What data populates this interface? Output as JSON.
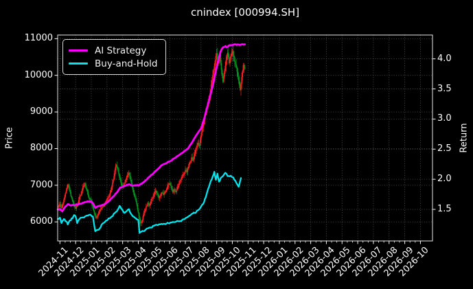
{
  "chart_data": {
    "type": "candlestick+line",
    "title": "cnindex [000994.SH]",
    "ylabel_left": "Price",
    "ylabel_right": "Return",
    "xlabel": "",
    "grid": true,
    "legend_position": "upper left",
    "background": "#000000",
    "text_color": "#ffffff",
    "grid_color": "#5a5a5a",
    "x_tick_labels": [
      "2024-11",
      "2024-12",
      "2025-01",
      "2025-02",
      "2025-03",
      "2025-04",
      "2025-05",
      "2025-06",
      "2025-07",
      "2025-08",
      "2025-09",
      "2025-10",
      "2025-11",
      "2025-12",
      "2026-01",
      "2026-02",
      "2026-03",
      "2026-04",
      "2026-05",
      "2026-06",
      "2026-07",
      "2026-08",
      "2026-09",
      "2026-10"
    ],
    "price_ticks": [
      6000,
      7000,
      8000,
      9000,
      10000,
      11000
    ],
    "return_ticks": [
      1.5,
      2.0,
      2.5,
      3.0,
      3.5,
      4.0
    ],
    "price_lim": [
      5480,
      11100
    ],
    "return_lim": [
      0.9755,
      4.3955
    ],
    "x_lim_months": [
      -0.145,
      23.77
    ],
    "candles": {
      "axis": "left",
      "x0": -0.1,
      "dx": 0.1,
      "open0": 6400,
      "up_color": "#ff2020",
      "down_color": "#00961f",
      "closes": [
        6420,
        6480,
        6380,
        6520,
        6680,
        6850,
        7020,
        6880,
        6700,
        6560,
        6420,
        6360,
        6480,
        6600,
        6720,
        6850,
        6980,
        7050,
        6880,
        6720,
        6620,
        6550,
        6420,
        6220,
        6100,
        6180,
        6280,
        6350,
        6420,
        6480,
        6550,
        6620,
        6680,
        6800,
        6950,
        7150,
        7400,
        7550,
        7450,
        7200,
        7050,
        6950,
        7050,
        7150,
        7280,
        7340,
        7150,
        6950,
        6800,
        6650,
        6480,
        6250,
        6020,
        5980,
        6150,
        6300,
        6420,
        6520,
        6450,
        6560,
        6650,
        6750,
        6850,
        6780,
        6650,
        6720,
        6800,
        6740,
        6820,
        6900,
        7000,
        7050,
        6920,
        6820,
        6900,
        6820,
        6950,
        7050,
        7150,
        7220,
        7300,
        7420,
        7360,
        7500,
        7620,
        7760,
        7700,
        7860,
        8020,
        8160,
        8080,
        8350,
        8580,
        8800,
        9000,
        9160,
        9360,
        9600,
        9860,
        10140,
        10400,
        10600,
        10320,
        10580,
        10150,
        9820,
        10120,
        10420,
        10620,
        10330,
        10530,
        10660,
        10500,
        10300,
        10100,
        9850,
        9600,
        9950,
        10280,
        10180
      ]
    },
    "series": [
      {
        "name": "AI Strategy",
        "axis": "right",
        "color": "#ff00ff",
        "x": [
          -0.14,
          0.0,
          0.15,
          0.3,
          0.5,
          0.7,
          0.9,
          1.1,
          1.4,
          1.7,
          2.0,
          2.1,
          2.25,
          2.4,
          2.6,
          2.8,
          3.0,
          3.3,
          3.6,
          3.85,
          4.1,
          4.4,
          4.6,
          5.0,
          5.2,
          5.5,
          5.75,
          6.0,
          6.25,
          6.5,
          6.75,
          7.0,
          7.25,
          7.5,
          7.75,
          8.0,
          8.2,
          8.4,
          8.6,
          8.8,
          9.0,
          9.2,
          9.35,
          9.5,
          9.65,
          9.8,
          9.95,
          10.1,
          10.25,
          10.4,
          10.55,
          10.65,
          10.8,
          11.0,
          11.2,
          11.4,
          11.6,
          11.8
        ],
        "y": [
          1.5,
          1.503,
          1.47,
          1.53,
          1.585,
          1.565,
          1.572,
          1.578,
          1.6,
          1.625,
          1.632,
          1.6,
          1.525,
          1.548,
          1.56,
          1.578,
          1.613,
          1.686,
          1.77,
          1.862,
          1.887,
          1.917,
          1.9,
          1.899,
          1.925,
          1.99,
          2.05,
          2.112,
          2.17,
          2.234,
          2.265,
          2.295,
          2.34,
          2.386,
          2.43,
          2.477,
          2.52,
          2.6,
          2.69,
          2.77,
          2.843,
          3.0,
          3.15,
          3.3,
          3.45,
          3.61,
          3.8,
          3.98,
          4.12,
          4.19,
          4.21,
          4.19,
          4.225,
          4.23,
          4.24,
          4.235,
          4.24,
          4.24
        ]
      },
      {
        "name": "Buy-and-Hold",
        "axis": "right",
        "color": "#00e5ee",
        "x": [
          -0.14,
          0.0,
          0.1,
          0.25,
          0.4,
          0.5,
          0.65,
          0.8,
          0.9,
          1.0,
          1.1,
          1.25,
          1.4,
          1.6,
          1.8,
          1.95,
          2.1,
          2.25,
          2.4,
          2.55,
          2.7,
          2.9,
          3.1,
          3.3,
          3.5,
          3.7,
          3.8,
          3.95,
          4.1,
          4.25,
          4.4,
          4.55,
          4.7,
          4.85,
          5.0,
          5.08,
          5.2,
          5.35,
          5.5,
          5.65,
          5.8,
          6.0,
          6.2,
          6.4,
          6.6,
          6.8,
          7.0,
          7.2,
          7.4,
          7.6,
          7.8,
          8.0,
          8.2,
          8.4,
          8.6,
          8.8,
          9.0,
          9.2,
          9.35,
          9.5,
          9.7,
          9.85,
          9.95,
          10.05,
          10.15,
          10.3,
          10.45,
          10.55,
          10.7,
          10.9,
          11.05,
          11.2,
          11.4,
          11.55
        ],
        "y": [
          1.34,
          1.363,
          1.272,
          1.339,
          1.3,
          1.248,
          1.32,
          1.351,
          1.405,
          1.381,
          1.272,
          1.34,
          1.363,
          1.381,
          1.4,
          1.411,
          1.381,
          1.137,
          1.16,
          1.186,
          1.26,
          1.3,
          1.351,
          1.381,
          1.44,
          1.5,
          1.558,
          1.503,
          1.442,
          1.47,
          1.503,
          1.42,
          1.381,
          1.35,
          1.325,
          1.108,
          1.13,
          1.137,
          1.17,
          1.19,
          1.198,
          1.229,
          1.24,
          1.25,
          1.259,
          1.265,
          1.27,
          1.29,
          1.295,
          1.3,
          1.325,
          1.351,
          1.381,
          1.424,
          1.442,
          1.485,
          1.546,
          1.625,
          1.746,
          1.868,
          2.008,
          2.125,
          1.99,
          2.094,
          1.96,
          2.033,
          2.07,
          2.107,
          2.052,
          2.06,
          2.033,
          1.972,
          1.875,
          2.021
        ]
      }
    ]
  }
}
